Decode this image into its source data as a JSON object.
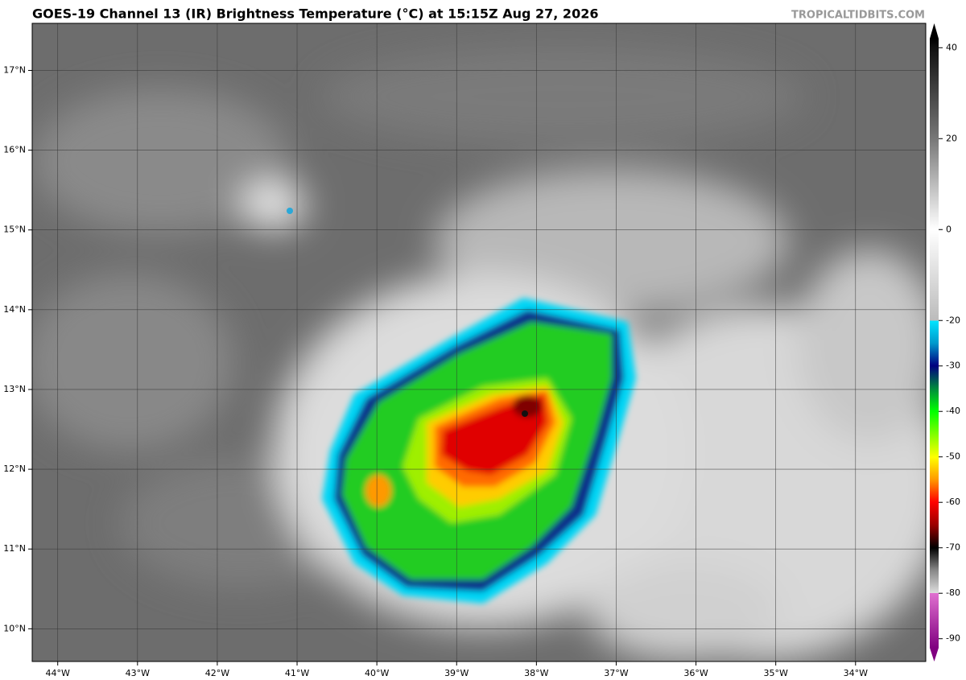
{
  "header": {
    "title": "GOES-19 Channel 13 (IR) Brightness Temperature (°C) at 15:15Z Aug 27, 2026",
    "watermark": "TROPICALTIDBITS.COM"
  },
  "map": {
    "xlim": [
      -44.32,
      -33.12
    ],
    "ylim": [
      9.59,
      17.59
    ],
    "grid": true,
    "xticks": [
      {
        "value": -44,
        "label": "44°W"
      },
      {
        "value": -43,
        "label": "43°W"
      },
      {
        "value": -42,
        "label": "42°W"
      },
      {
        "value": -41,
        "label": "41°W"
      },
      {
        "value": -40,
        "label": "40°W"
      },
      {
        "value": -39,
        "label": "39°W"
      },
      {
        "value": -38,
        "label": "38°W"
      },
      {
        "value": -37,
        "label": "37°W"
      },
      {
        "value": -36,
        "label": "36°W"
      },
      {
        "value": -35,
        "label": "35°W"
      },
      {
        "value": -34,
        "label": "34°W"
      }
    ],
    "yticks": [
      {
        "value": 10,
        "label": "10°N"
      },
      {
        "value": 11,
        "label": "11°N"
      },
      {
        "value": 12,
        "label": "12°N"
      },
      {
        "value": 13,
        "label": "13°N"
      },
      {
        "value": 14,
        "label": "14°N"
      },
      {
        "value": 15,
        "label": "15°N"
      },
      {
        "value": 16,
        "label": "16°N"
      },
      {
        "value": 17,
        "label": "17°N"
      }
    ]
  },
  "colorbar": {
    "lim": [
      -92,
      42
    ],
    "ticks": [
      40,
      20,
      0,
      -20,
      -30,
      -40,
      -50,
      -60,
      -70,
      -80,
      -90
    ]
  }
}
